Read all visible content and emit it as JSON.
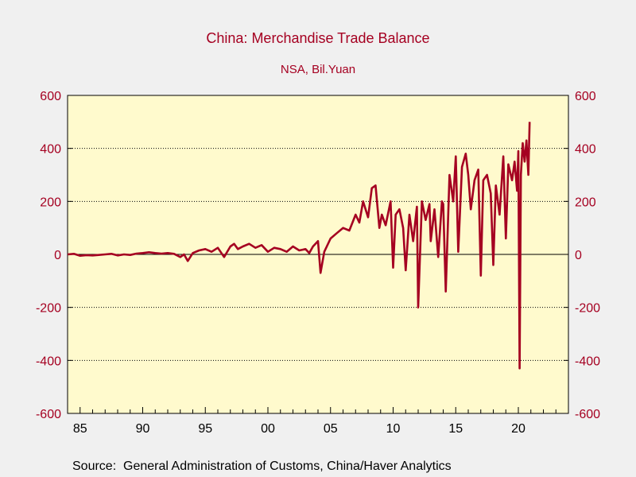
{
  "chart_data": {
    "type": "line",
    "title": "China: Merchandise Trade Balance",
    "subtitle": "NSA, Bil.Yuan",
    "source": "Source:  General Administration of Customs, China/Haver Analytics",
    "ylim": [
      -600,
      600
    ],
    "yticks": [
      -600,
      -400,
      -200,
      0,
      200,
      400,
      600
    ],
    "ytick_labels": [
      "-600",
      "-400",
      "-200",
      "0",
      "200",
      "400",
      "600"
    ],
    "xlim": [
      1984.0,
      2024.0
    ],
    "xticks": [
      1985,
      1990,
      1995,
      2000,
      2005,
      2010,
      2015,
      2020
    ],
    "xtick_labels": [
      "85",
      "90",
      "95",
      "00",
      "05",
      "10",
      "15",
      "20"
    ],
    "gridlines": [
      -400,
      -200,
      200,
      400
    ],
    "zero_line": 0,
    "colors": {
      "line": "#a50021",
      "plot_bg": "#fffacd",
      "axis_text": "#a50021"
    },
    "series": [
      {
        "x": [
          1984.0,
          1984.5,
          1985.0,
          1985.5,
          1986.0,
          1986.5,
          1987.0,
          1987.5,
          1988.0,
          1988.5,
          1989.0,
          1989.5,
          1990.0,
          1990.5,
          1991.0,
          1991.5,
          1992.0,
          1992.5,
          1993.0,
          1993.3,
          1993.6,
          1994.0,
          1994.5,
          1995.0,
          1995.5,
          1996.0,
          1996.5,
          1997.0,
          1997.3,
          1997.6,
          1998.0,
          1998.5,
          1999.0,
          1999.5,
          2000.0,
          2000.5,
          2001.0,
          2001.5,
          2002.0,
          2002.5,
          2003.0,
          2003.3,
          2003.6,
          2004.0,
          2004.2,
          2004.5,
          2005.0,
          2005.5,
          2006.0,
          2006.5,
          2007.0,
          2007.3,
          2007.6,
          2008.0,
          2008.3,
          2008.6,
          2008.9,
          2009.1,
          2009.4,
          2009.8,
          2010.0,
          2010.2,
          2010.5,
          2010.8,
          2011.0,
          2011.3,
          2011.6,
          2011.9,
          2012.0,
          2012.3,
          2012.6,
          2012.9,
          2013.0,
          2013.3,
          2013.6,
          2013.9,
          2014.0,
          2014.2,
          2014.5,
          2014.8,
          2015.0,
          2015.2,
          2015.5,
          2015.8,
          2016.0,
          2016.2,
          2016.5,
          2016.8,
          2017.0,
          2017.2,
          2017.5,
          2017.8,
          2018.0,
          2018.2,
          2018.5,
          2018.8,
          2019.0,
          2019.2,
          2019.5,
          2019.7,
          2019.9,
          2020.0,
          2020.1,
          2020.2,
          2020.35,
          2020.5,
          2020.65,
          2020.8,
          2020.9
        ],
        "y": [
          0,
          2,
          -5,
          -3,
          -4,
          -2,
          0,
          2,
          -4,
          0,
          -2,
          3,
          5,
          8,
          5,
          3,
          5,
          2,
          -10,
          0,
          -25,
          5,
          15,
          20,
          10,
          25,
          -10,
          30,
          40,
          20,
          30,
          40,
          25,
          35,
          10,
          25,
          20,
          10,
          30,
          15,
          20,
          5,
          30,
          50,
          -70,
          10,
          60,
          80,
          100,
          90,
          150,
          120,
          200,
          140,
          250,
          260,
          100,
          150,
          110,
          200,
          -50,
          150,
          170,
          100,
          -60,
          150,
          50,
          180,
          -200,
          200,
          130,
          190,
          50,
          170,
          -10,
          200,
          190,
          -140,
          300,
          200,
          370,
          10,
          330,
          380,
          300,
          170,
          280,
          320,
          -80,
          280,
          300,
          230,
          -40,
          260,
          150,
          370,
          60,
          340,
          280,
          350,
          240,
          390,
          -430,
          300,
          420,
          350,
          430,
          300,
          500
        ]
      }
    ]
  }
}
